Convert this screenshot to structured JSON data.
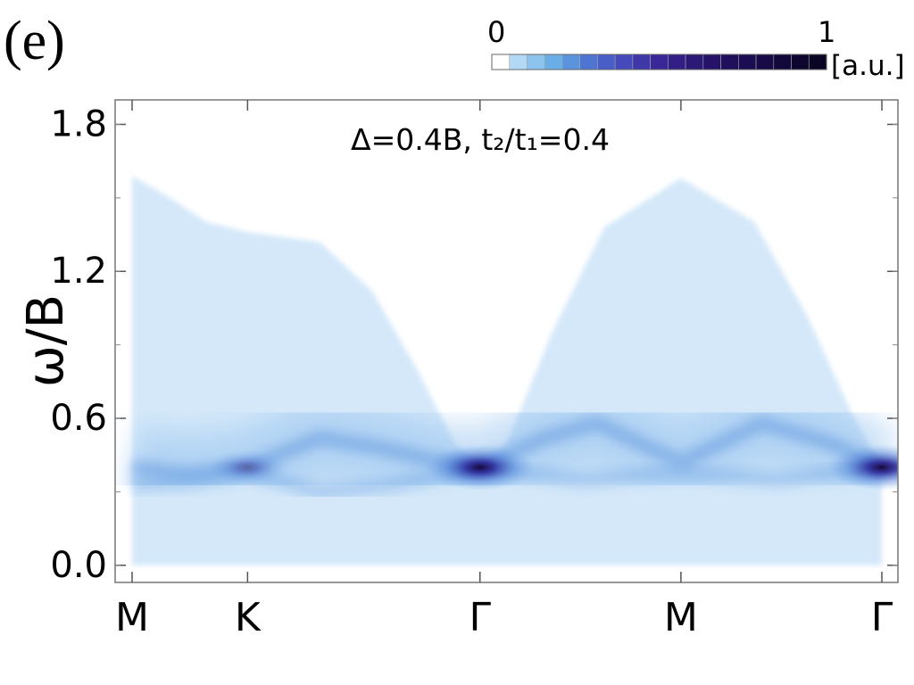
{
  "panel_label": "(e)",
  "colorbar": {
    "min_label": "0",
    "max_label": "1",
    "unit_label": "[a.u.]",
    "colors": [
      "#ffffff",
      "#b3d9f5",
      "#8cc4ee",
      "#6aaee6",
      "#5b93dd",
      "#4f75d2",
      "#4a5ec8",
      "#4649bb",
      "#3f36a8",
      "#3a2898",
      "#331e86",
      "#2c1877",
      "#261268",
      "#20105c",
      "#1c0d52",
      "#170a46",
      "#12083a",
      "#0e062e",
      "#0b0524"
    ]
  },
  "annotation": "Δ=0.4B, t₂/t₁=0.4",
  "chart_data": {
    "type": "heatmap",
    "title": "",
    "xlabel": "",
    "ylabel": "ω/B",
    "ylim": [
      -0.07,
      1.9
    ],
    "yticks": [
      {
        "value": 0.0,
        "label": "0.0"
      },
      {
        "value": 0.6,
        "label": "0.6"
      },
      {
        "value": 1.2,
        "label": "1.2"
      },
      {
        "value": 1.8,
        "label": "1.8"
      }
    ],
    "xticks": [
      {
        "position": 0.0,
        "label": "M"
      },
      {
        "position": 0.154,
        "label": "K"
      },
      {
        "position": 0.464,
        "label": "Γ"
      },
      {
        "position": 0.732,
        "label": "M"
      },
      {
        "position": 1.0,
        "label": "Γ"
      }
    ],
    "continuum_upper_edge": [
      {
        "x": 0.0,
        "y": 1.59
      },
      {
        "x": 0.05,
        "y": 1.5
      },
      {
        "x": 0.1,
        "y": 1.4
      },
      {
        "x": 0.154,
        "y": 1.36
      },
      {
        "x": 0.25,
        "y": 1.32
      },
      {
        "x": 0.32,
        "y": 1.12
      },
      {
        "x": 0.38,
        "y": 0.8
      },
      {
        "x": 0.43,
        "y": 0.5
      },
      {
        "x": 0.464,
        "y": 0.4
      },
      {
        "x": 0.5,
        "y": 0.5
      },
      {
        "x": 0.56,
        "y": 0.95
      },
      {
        "x": 0.63,
        "y": 1.38
      },
      {
        "x": 0.732,
        "y": 1.58
      },
      {
        "x": 0.83,
        "y": 1.4
      },
      {
        "x": 0.9,
        "y": 1.02
      },
      {
        "x": 0.96,
        "y": 0.62
      },
      {
        "x": 1.0,
        "y": 0.4
      }
    ],
    "main_band": [
      {
        "x": 0.0,
        "y": 0.4
      },
      {
        "x": 0.07,
        "y": 0.37
      },
      {
        "x": 0.154,
        "y": 0.4
      },
      {
        "x": 0.25,
        "y": 0.52
      },
      {
        "x": 0.33,
        "y": 0.48
      },
      {
        "x": 0.4,
        "y": 0.43
      },
      {
        "x": 0.464,
        "y": 0.4
      },
      {
        "x": 0.55,
        "y": 0.52
      },
      {
        "x": 0.62,
        "y": 0.58
      },
      {
        "x": 0.732,
        "y": 0.42
      },
      {
        "x": 0.84,
        "y": 0.58
      },
      {
        "x": 0.93,
        "y": 0.5
      },
      {
        "x": 1.0,
        "y": 0.4
      }
    ],
    "lower_band": [
      {
        "x": 0.0,
        "y": 0.33
      },
      {
        "x": 0.08,
        "y": 0.34
      },
      {
        "x": 0.154,
        "y": 0.38
      },
      {
        "x": 0.25,
        "y": 0.3
      },
      {
        "x": 0.35,
        "y": 0.33
      },
      {
        "x": 0.464,
        "y": 0.4
      },
      {
        "x": 0.6,
        "y": 0.35
      },
      {
        "x": 0.732,
        "y": 0.38
      },
      {
        "x": 0.86,
        "y": 0.35
      },
      {
        "x": 1.0,
        "y": 0.4
      }
    ],
    "intensity_peaks": [
      {
        "x": 0.464,
        "y": 0.4,
        "intensity": 1.0
      },
      {
        "x": 1.0,
        "y": 0.4,
        "intensity": 1.0
      },
      {
        "x": 0.154,
        "y": 0.4,
        "intensity": 0.45
      }
    ]
  }
}
